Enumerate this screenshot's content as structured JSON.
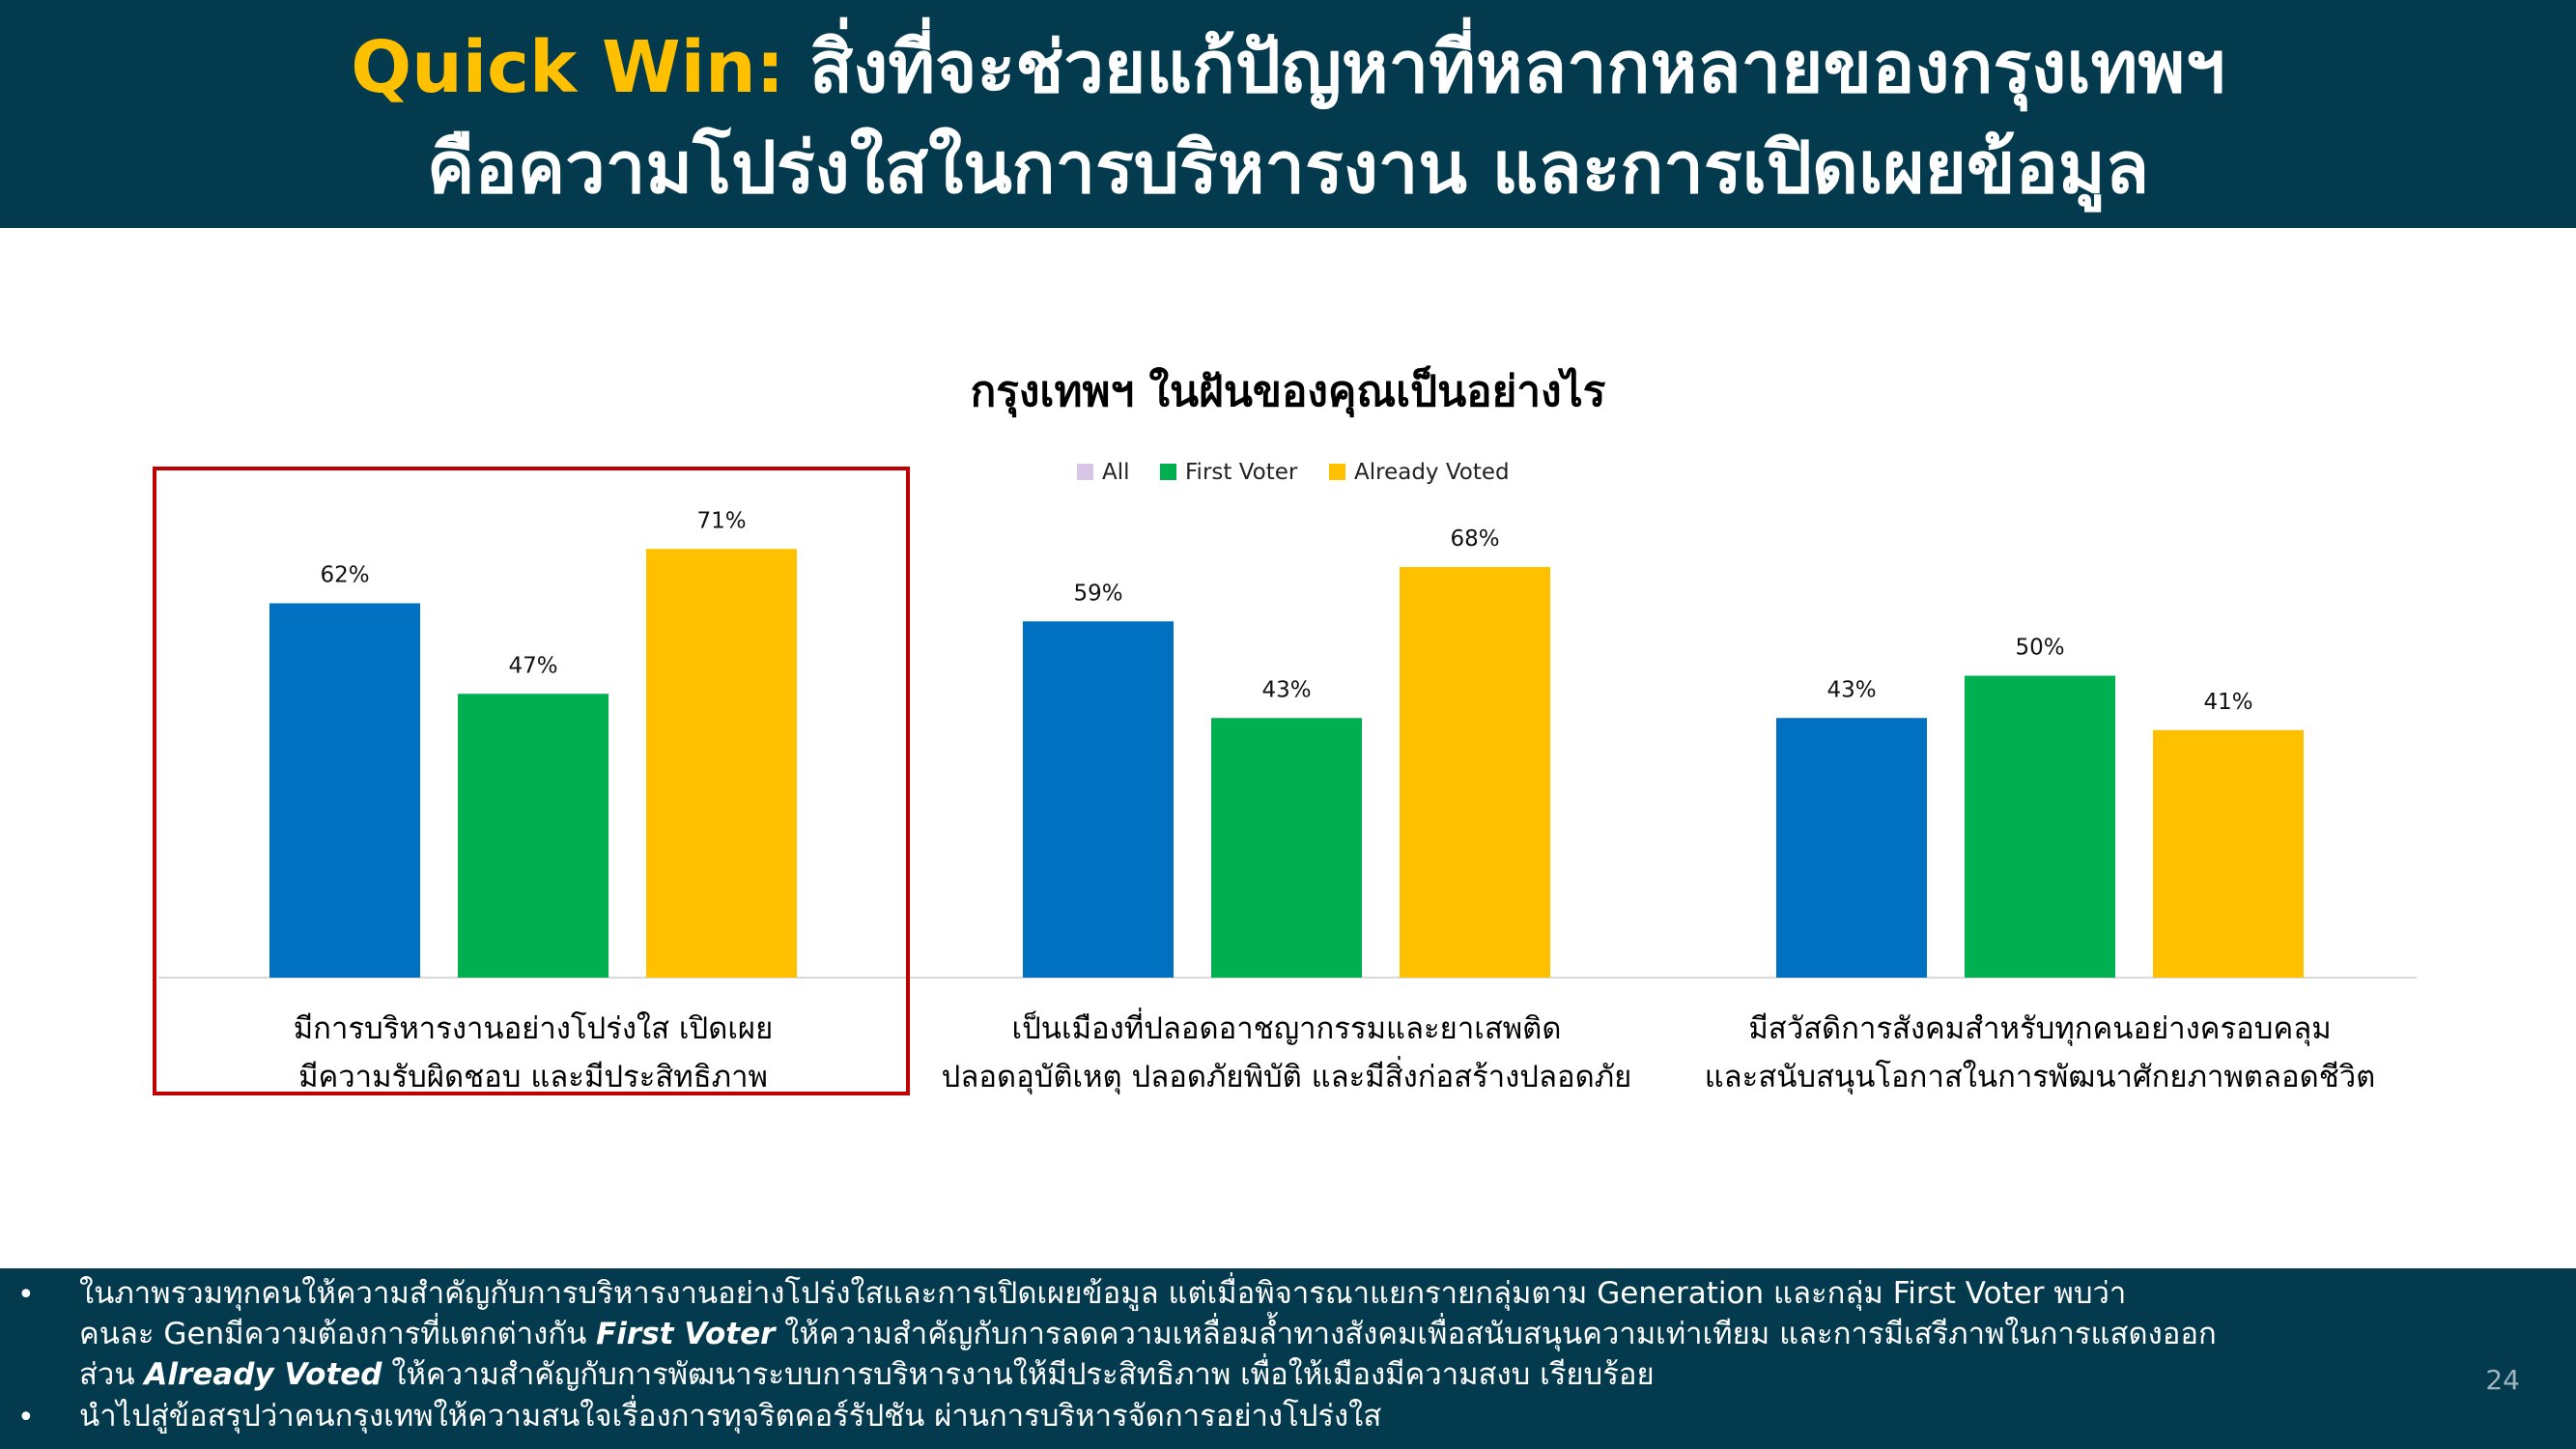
{
  "header": {
    "accent": "Quick Win:",
    "line1_rest": " สิ่งที่จะช่วยแก้ปัญหาที่หลากหลายของกรุงเทพฯ",
    "line2": "คือความโปร่งใสในการบริหารงาน และการเปิดเผยข้อมูล"
  },
  "chart_data": {
    "type": "bar",
    "title": "กรุงเทพฯ ในฝันของคุณเป็นอย่างไร",
    "legend_position": "top",
    "ylim": [
      0,
      80
    ],
    "categories": [
      [
        "มีการบริหารงานอย่างโปร่งใส เปิดเผย",
        "มีความรับผิดชอบ และมีประสิทธิภาพ"
      ],
      [
        "เป็นเมืองที่ปลอดอาชญากรรมและยาเสพติด",
        "ปลอดอุบัติเหตุ ปลอดภัยพิบัติ และมีสิ่งก่อสร้างปลอดภัย"
      ],
      [
        "มีสวัสดิการสังคมสำหรับทุกคนอย่างครอบคลุม",
        "และสนับสนุนโอกาสในการพัฒนาศักยภาพตลอดชีวิต"
      ]
    ],
    "series": [
      {
        "name": "All",
        "legend_color": "#d9c6e6",
        "bar_color": "#0070c0",
        "values": [
          62,
          59,
          43
        ]
      },
      {
        "name": "First Voter",
        "legend_color": "#00b050",
        "bar_color": "#00b050",
        "values": [
          47,
          43,
          50
        ]
      },
      {
        "name": "Already Voted",
        "legend_color": "#ffc000",
        "bar_color": "#ffc000",
        "values": [
          71,
          68,
          41
        ]
      }
    ],
    "value_suffix": "%",
    "highlight_category": 0,
    "highlight_color": "#c00000"
  },
  "footer": {
    "bullet1_l1": "ในภาพรวมทุกคนให้ความสำคัญกับการบริหารงานอย่างโปร่งใสและการเปิดเผยข้อมูล แต่เมื่อพิจารณาแยกรายกลุ่มตาม Generation และกลุ่ม First Voter พบว่า",
    "bullet1_l2_a": "คนละ Genมีความต้องการที่แตกต่างกัน ",
    "bullet1_l2_em": "First Voter",
    "bullet1_l2_b": " ให้ความสำคัญกับการลดความเหลื่อมล้ำทางสังคมเพื่อสนับสนุนความเท่าเทียม และการมีเสรีภาพในการแสดงออก",
    "bullet1_l3_a": "ส่วน ",
    "bullet1_l3_em": "Already Voted",
    "bullet1_l3_b": " ให้ความสำคัญกับการพัฒนาระบบการบริหารงานให้มีประสิทธิภาพ เพื่อให้เมืองมีความสงบ เรียบร้อย",
    "bullet2": "นำไปสู่ข้อสรุปว่าคนกรุงเทพให้ความสนใจเรื่องการทุจริตคอร์รัปชัน ผ่านการบริหารจัดการอย่างโปร่งใส",
    "bullet_symbol": "•",
    "page_number": "24"
  }
}
